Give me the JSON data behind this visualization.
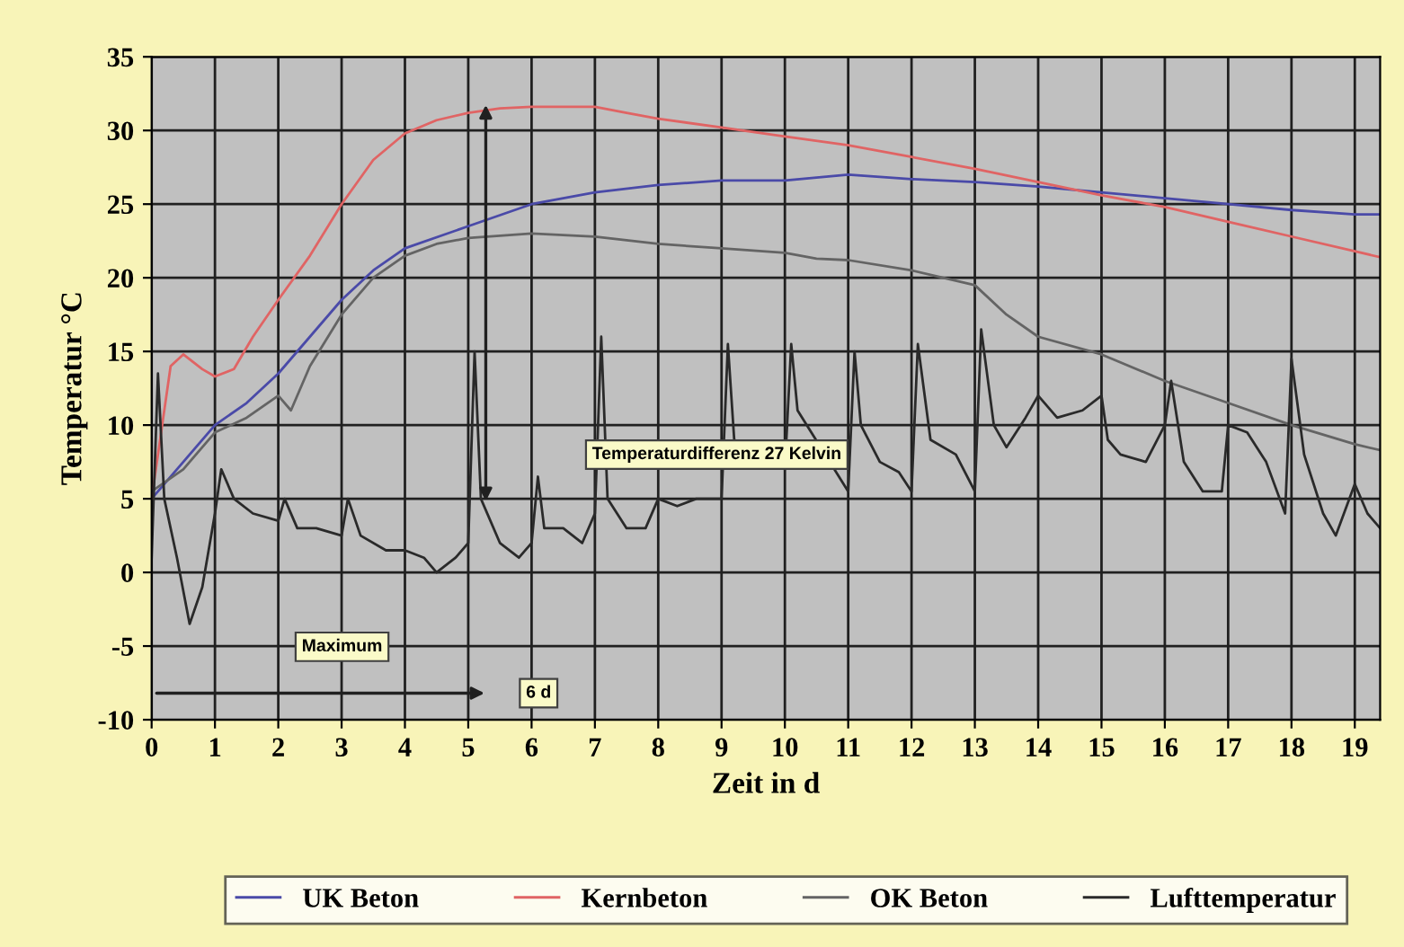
{
  "chart_data": {
    "type": "line",
    "xlabel": "Zeit in d",
    "ylabel": "Temperatur °C",
    "xlim": [
      0,
      19.4
    ],
    "ylim": [
      -10,
      35
    ],
    "xticks": [
      0,
      1,
      2,
      3,
      4,
      5,
      6,
      7,
      8,
      9,
      10,
      11,
      12,
      13,
      14,
      15,
      16,
      17,
      18,
      19
    ],
    "yticks": [
      -10,
      -5,
      0,
      5,
      10,
      15,
      20,
      25,
      30,
      35
    ],
    "grid": true,
    "legend": "bottom",
    "marker": "none",
    "line_style": "solid",
    "annotations": [
      "Temperaturdifferenz 27 Kelvin",
      "Maximum",
      "6 d"
    ],
    "series": [
      {
        "name": "UK Beton",
        "color": "#4a4aa8",
        "x": [
          0,
          0.5,
          1,
          1.5,
          2,
          2.5,
          3,
          3.5,
          4,
          5,
          6,
          7,
          8,
          9,
          10,
          10.5,
          11,
          12,
          13,
          14,
          15,
          16,
          17,
          18,
          19,
          19.4
        ],
        "values": [
          5,
          7.5,
          10,
          11.5,
          13.5,
          16,
          18.5,
          20.5,
          22,
          23.5,
          25,
          25.8,
          26.3,
          26.6,
          26.6,
          26.8,
          27,
          26.7,
          26.5,
          26.2,
          25.8,
          25.4,
          25,
          24.6,
          24.3,
          24.3
        ]
      },
      {
        "name": "Kernbeton",
        "color": "#e06464",
        "x": [
          0,
          0.3,
          0.5,
          0.8,
          1,
          1.3,
          1.6,
          2,
          2.5,
          3,
          3.5,
          4,
          4.5,
          5,
          5.5,
          6,
          7,
          7.5,
          8,
          9,
          10,
          11,
          12,
          13,
          14,
          15,
          16,
          17,
          18,
          19,
          19.4
        ],
        "values": [
          5,
          14,
          14.8,
          13.8,
          13.3,
          13.8,
          16,
          18.5,
          21.5,
          25,
          28,
          29.8,
          30.7,
          31.2,
          31.5,
          31.6,
          31.6,
          31.2,
          30.8,
          30.2,
          29.6,
          29,
          28.2,
          27.4,
          26.5,
          25.6,
          24.8,
          23.8,
          22.8,
          21.8,
          21.4
        ]
      },
      {
        "name": "OK Beton",
        "color": "#646464",
        "x": [
          0,
          0.5,
          1,
          1.5,
          2,
          2.2,
          2.5,
          3,
          3.5,
          4,
          4.5,
          5,
          6,
          7,
          8,
          9,
          10,
          10.5,
          11,
          12,
          13,
          13.5,
          14,
          15,
          16,
          17,
          18,
          19,
          19.4
        ],
        "values": [
          5.5,
          7,
          9.5,
          10.5,
          12,
          11,
          14,
          17.5,
          20,
          21.5,
          22.3,
          22.7,
          23,
          22.8,
          22.3,
          22,
          21.7,
          21.3,
          21.2,
          20.5,
          19.5,
          17.5,
          16,
          14.8,
          13,
          11.5,
          10,
          8.7,
          8.3
        ]
      },
      {
        "name": "Lufttemperatur",
        "color": "#2a2a2a",
        "x": [
          0,
          0.1,
          0.2,
          0.4,
          0.6,
          0.8,
          1,
          1.1,
          1.3,
          1.6,
          2,
          2.1,
          2.3,
          2.6,
          3,
          3.1,
          3.3,
          3.7,
          4,
          4.3,
          4.5,
          4.8,
          5,
          5.1,
          5.2,
          5.5,
          5.8,
          6,
          6.1,
          6.2,
          6.5,
          6.8,
          7,
          7.1,
          7.2,
          7.5,
          7.8,
          8,
          8.3,
          8.6,
          9,
          9.1,
          9.2,
          9.5,
          9.8,
          10,
          10.1,
          10.2,
          10.5,
          11,
          11.1,
          11.2,
          11.5,
          11.8,
          12,
          12.1,
          12.3,
          12.7,
          13,
          13.1,
          13.3,
          13.5,
          13.8,
          14,
          14.3,
          14.7,
          15,
          15.1,
          15.3,
          15.7,
          16,
          16.1,
          16.3,
          16.6,
          16.9,
          17,
          17.3,
          17.6,
          17.9,
          18,
          18.2,
          18.5,
          18.7,
          19,
          19.2,
          19.4
        ],
        "values": [
          1,
          13.5,
          5,
          1,
          -3.5,
          -1,
          4,
          7,
          5,
          4,
          3.5,
          5,
          3,
          3,
          2.5,
          5,
          2.5,
          1.5,
          1.5,
          1,
          0,
          1,
          2,
          15,
          5,
          2,
          1,
          2,
          6.5,
          3,
          3,
          2,
          4,
          16,
          5,
          3,
          3,
          5,
          4.5,
          5,
          5,
          15.5,
          9,
          null,
          null,
          7,
          15.5,
          11,
          null,
          5.5,
          15,
          10,
          7.5,
          6.8,
          5.5,
          15.5,
          9,
          8,
          5.5,
          16.5,
          10,
          8.5,
          10.5,
          12,
          10.5,
          11,
          12,
          9,
          8,
          7.5,
          10,
          13,
          7.5,
          5.5,
          5.5,
          10,
          9.5,
          7.5,
          4,
          14.5,
          8,
          4,
          2.5,
          6,
          4,
          3
        ]
      }
    ]
  }
}
